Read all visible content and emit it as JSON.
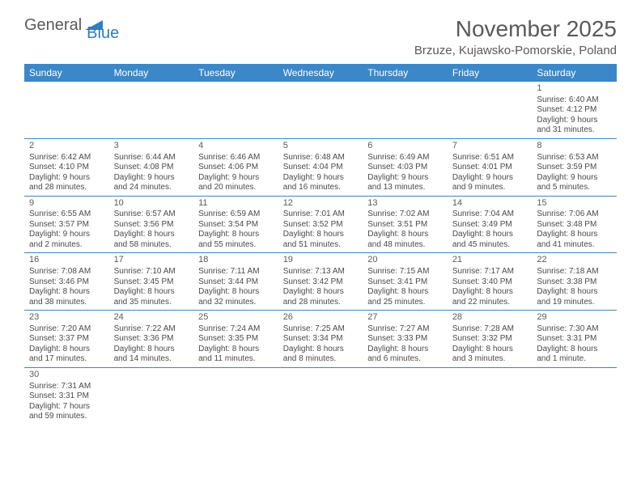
{
  "logo": {
    "text1": "General",
    "text2": "Blue"
  },
  "title": "November 2025",
  "location": "Brzuze, Kujawsko-Pomorskie, Poland",
  "colors": {
    "header_bg": "#3b87c8",
    "header_fg": "#ffffff",
    "grid_line": "#3b87c8",
    "text": "#4a4a4a",
    "title": "#5a5a5a"
  },
  "weekdays": [
    "Sunday",
    "Monday",
    "Tuesday",
    "Wednesday",
    "Thursday",
    "Friday",
    "Saturday"
  ],
  "weeks": [
    [
      null,
      null,
      null,
      null,
      null,
      null,
      {
        "n": "1",
        "sunrise": "Sunrise: 6:40 AM",
        "sunset": "Sunset: 4:12 PM",
        "day1": "Daylight: 9 hours",
        "day2": "and 31 minutes."
      }
    ],
    [
      {
        "n": "2",
        "sunrise": "Sunrise: 6:42 AM",
        "sunset": "Sunset: 4:10 PM",
        "day1": "Daylight: 9 hours",
        "day2": "and 28 minutes."
      },
      {
        "n": "3",
        "sunrise": "Sunrise: 6:44 AM",
        "sunset": "Sunset: 4:08 PM",
        "day1": "Daylight: 9 hours",
        "day2": "and 24 minutes."
      },
      {
        "n": "4",
        "sunrise": "Sunrise: 6:46 AM",
        "sunset": "Sunset: 4:06 PM",
        "day1": "Daylight: 9 hours",
        "day2": "and 20 minutes."
      },
      {
        "n": "5",
        "sunrise": "Sunrise: 6:48 AM",
        "sunset": "Sunset: 4:04 PM",
        "day1": "Daylight: 9 hours",
        "day2": "and 16 minutes."
      },
      {
        "n": "6",
        "sunrise": "Sunrise: 6:49 AM",
        "sunset": "Sunset: 4:03 PM",
        "day1": "Daylight: 9 hours",
        "day2": "and 13 minutes."
      },
      {
        "n": "7",
        "sunrise": "Sunrise: 6:51 AM",
        "sunset": "Sunset: 4:01 PM",
        "day1": "Daylight: 9 hours",
        "day2": "and 9 minutes."
      },
      {
        "n": "8",
        "sunrise": "Sunrise: 6:53 AM",
        "sunset": "Sunset: 3:59 PM",
        "day1": "Daylight: 9 hours",
        "day2": "and 5 minutes."
      }
    ],
    [
      {
        "n": "9",
        "sunrise": "Sunrise: 6:55 AM",
        "sunset": "Sunset: 3:57 PM",
        "day1": "Daylight: 9 hours",
        "day2": "and 2 minutes."
      },
      {
        "n": "10",
        "sunrise": "Sunrise: 6:57 AM",
        "sunset": "Sunset: 3:56 PM",
        "day1": "Daylight: 8 hours",
        "day2": "and 58 minutes."
      },
      {
        "n": "11",
        "sunrise": "Sunrise: 6:59 AM",
        "sunset": "Sunset: 3:54 PM",
        "day1": "Daylight: 8 hours",
        "day2": "and 55 minutes."
      },
      {
        "n": "12",
        "sunrise": "Sunrise: 7:01 AM",
        "sunset": "Sunset: 3:52 PM",
        "day1": "Daylight: 8 hours",
        "day2": "and 51 minutes."
      },
      {
        "n": "13",
        "sunrise": "Sunrise: 7:02 AM",
        "sunset": "Sunset: 3:51 PM",
        "day1": "Daylight: 8 hours",
        "day2": "and 48 minutes."
      },
      {
        "n": "14",
        "sunrise": "Sunrise: 7:04 AM",
        "sunset": "Sunset: 3:49 PM",
        "day1": "Daylight: 8 hours",
        "day2": "and 45 minutes."
      },
      {
        "n": "15",
        "sunrise": "Sunrise: 7:06 AM",
        "sunset": "Sunset: 3:48 PM",
        "day1": "Daylight: 8 hours",
        "day2": "and 41 minutes."
      }
    ],
    [
      {
        "n": "16",
        "sunrise": "Sunrise: 7:08 AM",
        "sunset": "Sunset: 3:46 PM",
        "day1": "Daylight: 8 hours",
        "day2": "and 38 minutes."
      },
      {
        "n": "17",
        "sunrise": "Sunrise: 7:10 AM",
        "sunset": "Sunset: 3:45 PM",
        "day1": "Daylight: 8 hours",
        "day2": "and 35 minutes."
      },
      {
        "n": "18",
        "sunrise": "Sunrise: 7:11 AM",
        "sunset": "Sunset: 3:44 PM",
        "day1": "Daylight: 8 hours",
        "day2": "and 32 minutes."
      },
      {
        "n": "19",
        "sunrise": "Sunrise: 7:13 AM",
        "sunset": "Sunset: 3:42 PM",
        "day1": "Daylight: 8 hours",
        "day2": "and 28 minutes."
      },
      {
        "n": "20",
        "sunrise": "Sunrise: 7:15 AM",
        "sunset": "Sunset: 3:41 PM",
        "day1": "Daylight: 8 hours",
        "day2": "and 25 minutes."
      },
      {
        "n": "21",
        "sunrise": "Sunrise: 7:17 AM",
        "sunset": "Sunset: 3:40 PM",
        "day1": "Daylight: 8 hours",
        "day2": "and 22 minutes."
      },
      {
        "n": "22",
        "sunrise": "Sunrise: 7:18 AM",
        "sunset": "Sunset: 3:38 PM",
        "day1": "Daylight: 8 hours",
        "day2": "and 19 minutes."
      }
    ],
    [
      {
        "n": "23",
        "sunrise": "Sunrise: 7:20 AM",
        "sunset": "Sunset: 3:37 PM",
        "day1": "Daylight: 8 hours",
        "day2": "and 17 minutes."
      },
      {
        "n": "24",
        "sunrise": "Sunrise: 7:22 AM",
        "sunset": "Sunset: 3:36 PM",
        "day1": "Daylight: 8 hours",
        "day2": "and 14 minutes."
      },
      {
        "n": "25",
        "sunrise": "Sunrise: 7:24 AM",
        "sunset": "Sunset: 3:35 PM",
        "day1": "Daylight: 8 hours",
        "day2": "and 11 minutes."
      },
      {
        "n": "26",
        "sunrise": "Sunrise: 7:25 AM",
        "sunset": "Sunset: 3:34 PM",
        "day1": "Daylight: 8 hours",
        "day2": "and 8 minutes."
      },
      {
        "n": "27",
        "sunrise": "Sunrise: 7:27 AM",
        "sunset": "Sunset: 3:33 PM",
        "day1": "Daylight: 8 hours",
        "day2": "and 6 minutes."
      },
      {
        "n": "28",
        "sunrise": "Sunrise: 7:28 AM",
        "sunset": "Sunset: 3:32 PM",
        "day1": "Daylight: 8 hours",
        "day2": "and 3 minutes."
      },
      {
        "n": "29",
        "sunrise": "Sunrise: 7:30 AM",
        "sunset": "Sunset: 3:31 PM",
        "day1": "Daylight: 8 hours",
        "day2": "and 1 minute."
      }
    ],
    [
      {
        "n": "30",
        "sunrise": "Sunrise: 7:31 AM",
        "sunset": "Sunset: 3:31 PM",
        "day1": "Daylight: 7 hours",
        "day2": "and 59 minutes."
      },
      null,
      null,
      null,
      null,
      null,
      null
    ]
  ]
}
